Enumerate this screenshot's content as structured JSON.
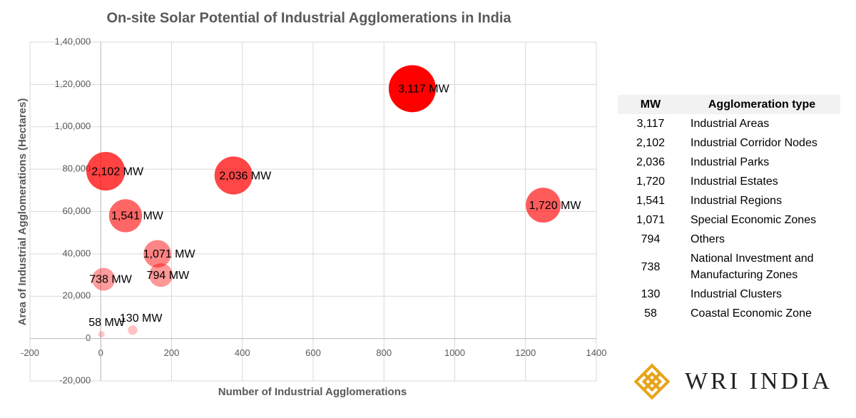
{
  "chart_data": {
    "type": "bubble",
    "title": "On-site Solar Potential of Industrial Agglomerations in India",
    "x_label": "Number of Industrial Agglomerations",
    "y_label": "Area of Industrial Agglomerations (Hectares)",
    "x": [
      880,
      14,
      375,
      1250,
      70,
      160,
      170,
      8,
      90,
      2
    ],
    "values": [
      118000,
      79000,
      77000,
      63000,
      58000,
      40000,
      30000,
      28000,
      4000,
      2000
    ],
    "sizes": [
      3117,
      2102,
      2036,
      1720,
      1541,
      1071,
      794,
      738,
      130,
      58
    ],
    "value_labels": [
      "3,117 MW",
      "2,102 MW",
      "2,036 MW",
      "1,720 MW",
      "1,541 MW",
      "1,071 MW",
      "794 MW",
      "738 MW",
      "130 MW",
      "58 MW"
    ],
    "color": "#ff0000",
    "xlim": [
      -200,
      1400
    ],
    "xticks": [
      -200,
      0,
      200,
      400,
      600,
      800,
      1000,
      1200,
      1400
    ],
    "ylim": [
      -20000,
      140000
    ],
    "yticks": [
      {
        "value": -20000,
        "label": "-20,000"
      },
      0,
      {
        "value": 20000,
        "label": "20,000"
      },
      {
        "value": 40000,
        "label": "40,000"
      },
      {
        "value": 60000,
        "label": "60,000"
      },
      {
        "value": 80000,
        "label": "80,000"
      },
      {
        "value": 100000,
        "label": "1,00,000"
      },
      {
        "value": 120000,
        "label": "1,20,000"
      },
      {
        "value": 140000,
        "label": "1,40,000"
      }
    ],
    "grid": true
  },
  "table": {
    "header": [
      "MW",
      "Agglomeration type"
    ],
    "rows": [
      [
        "3,117",
        "Industrial Areas"
      ],
      [
        "2,102",
        "Industrial Corridor Nodes"
      ],
      [
        "2,036",
        "Industrial Parks"
      ],
      [
        "1,720",
        "Industrial Estates"
      ],
      [
        "1,541",
        "Industrial Regions"
      ],
      [
        "1,071",
        "Special Economic Zones"
      ],
      [
        "794",
        "Others"
      ],
      [
        "738",
        "National Investment and Manufacturing Zones"
      ],
      [
        "130",
        "Industrial Clusters"
      ],
      [
        "58",
        "Coastal Economic Zone"
      ]
    ]
  },
  "logo": {
    "text": "WRI INDIA"
  }
}
